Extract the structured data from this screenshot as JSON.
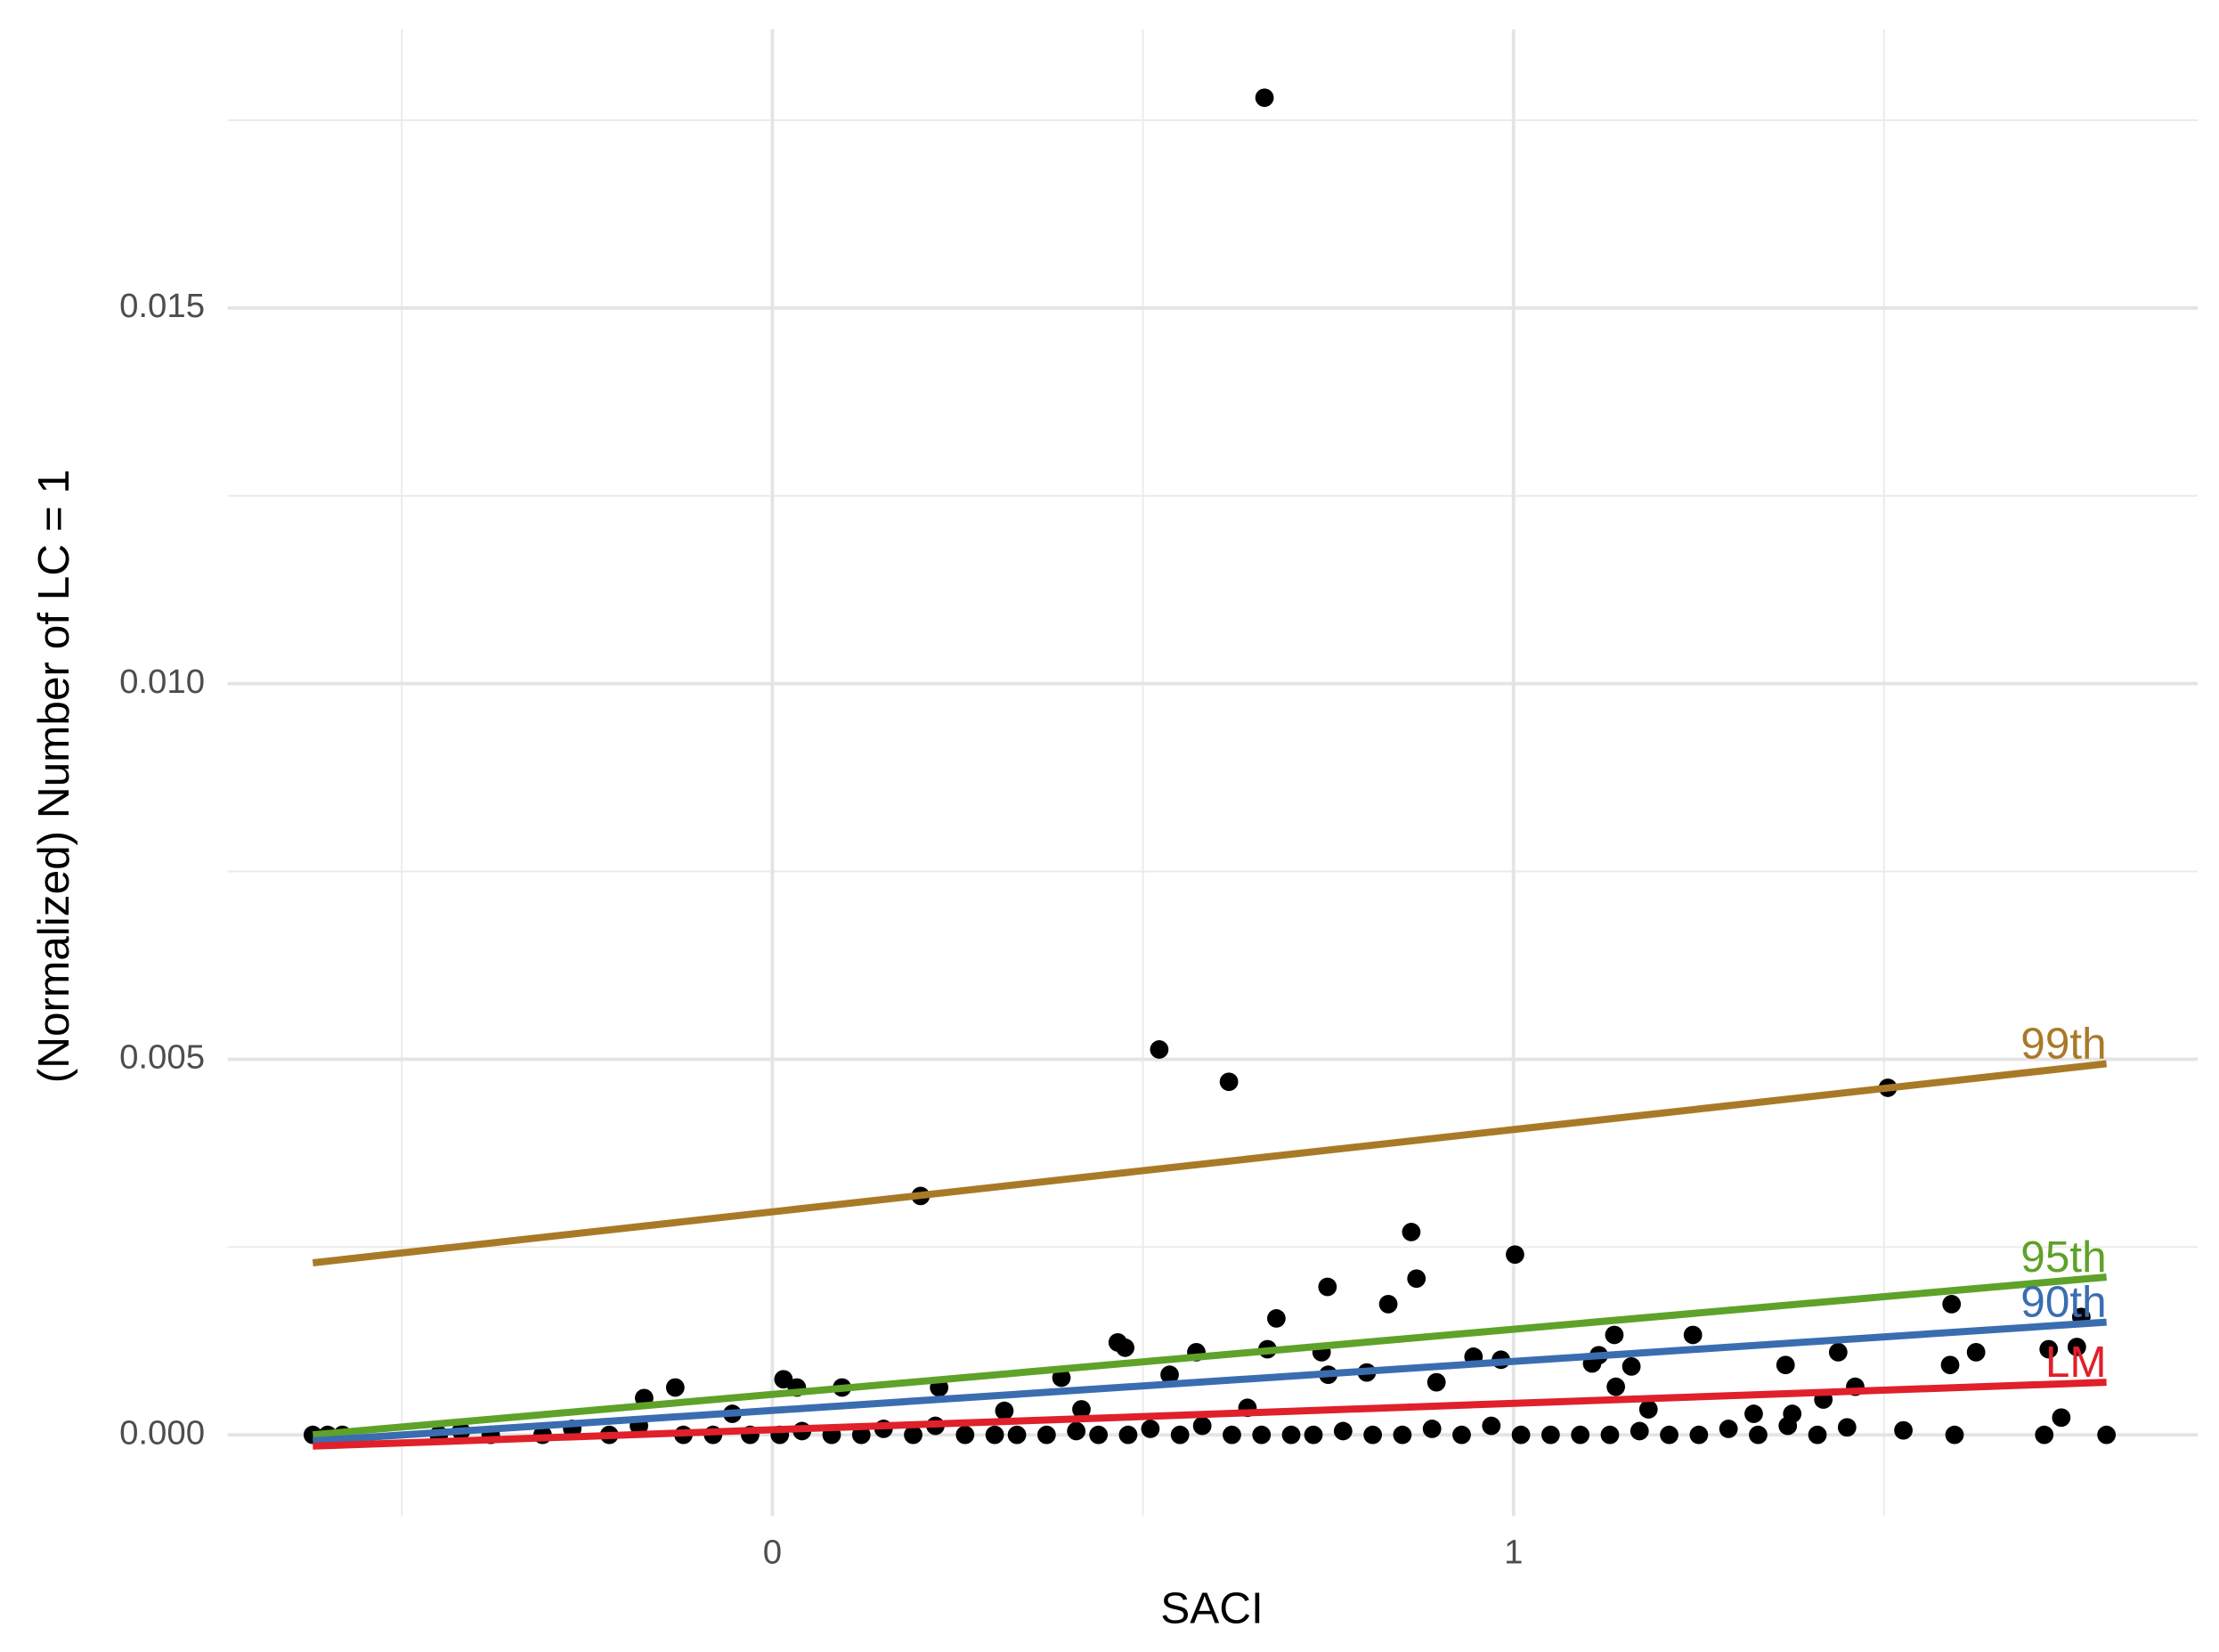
{
  "chart_data": {
    "type": "scatter",
    "xlabel": "SACI",
    "ylabel": "(Normalized) Number of LC = 1",
    "xlim": [
      -0.735,
      1.923
    ],
    "ylim": [
      -0.00108,
      0.01871
    ],
    "xticks": [
      0,
      1
    ],
    "yticks": [
      {
        "value": 0,
        "label": "0.000"
      },
      {
        "value": 0.005,
        "label": "0.005"
      },
      {
        "value": 0.01,
        "label": "0.010"
      },
      {
        "value": 0.015,
        "label": "0.015"
      }
    ],
    "xminor": [
      -0.5,
      0.5,
      1.5
    ],
    "yminor": [
      0.0025,
      0.0075,
      0.0125,
      0.0175
    ],
    "grid": true,
    "series": [
      {
        "color": "#000000",
        "x": [
          0.664,
          0.522,
          0.616,
          0.2,
          1.505,
          1.002,
          0.862,
          0.869,
          0.749,
          0.831,
          0.68,
          1.591,
          0.466,
          0.476,
          0.572,
          0.668,
          0.741,
          0.946,
          0.983,
          1.136,
          1.242,
          1.115,
          1.106,
          1.159,
          1.367,
          1.438,
          1.624,
          1.589,
          1.722,
          1.76,
          1.766,
          0.536,
          0.39,
          0.015,
          0.033,
          0.094,
          -0.131,
          -0.173,
          0.225,
          0.75,
          0.802,
          0.896,
          1.138,
          1.461,
          1.418,
          1.739,
          -0.054,
          0.313,
          0.417,
          0.641,
          1.182,
          1.324,
          1.376,
          1.716,
          1.8,
          1.595,
          1.526,
          -0.62,
          -0.6,
          -0.58,
          -0.45,
          -0.42,
          -0.38,
          -0.31,
          -0.27,
          -0.22,
          -0.18,
          -0.12,
          -0.08,
          -0.03,
          0.01,
          0.04,
          0.08,
          0.12,
          0.15,
          0.19,
          0.22,
          0.26,
          0.3,
          0.33,
          0.37,
          0.41,
          0.44,
          0.48,
          0.51,
          0.55,
          0.58,
          0.62,
          0.66,
          0.7,
          0.73,
          0.77,
          0.81,
          0.85,
          0.89,
          0.93,
          0.97,
          1.01,
          1.05,
          1.09,
          1.13,
          1.17,
          1.21,
          1.25,
          1.29,
          1.33,
          1.37,
          1.41,
          1.45
        ],
        "values": [
          0.0178,
          0.00513,
          0.0047,
          0.00318,
          0.00462,
          0.0024,
          0.0027,
          0.00208,
          0.00197,
          0.00174,
          0.00155,
          0.00174,
          0.00123,
          0.00116,
          0.0011,
          0.00114,
          0.0011,
          0.00104,
          0.001,
          0.00133,
          0.00133,
          0.00106,
          0.00095,
          0.00091,
          0.00093,
          0.0011,
          0.0011,
          0.00093,
          0.00114,
          0.00117,
          0.00157,
          0.0008,
          0.00076,
          0.00074,
          0.00063,
          0.00063,
          0.00063,
          0.00049,
          0.00063,
          0.0008,
          0.00083,
          0.0007,
          0.00064,
          0.00064,
          0.00047,
          0.00023,
          0.00028,
          0.00032,
          0.00034,
          0.00036,
          0.00034,
          0.00028,
          0.00028,
          0,
          0,
          0,
          6e-05,
          0,
          0,
          0,
          0,
          5e-05,
          0,
          0,
          8e-05,
          0,
          0.00012,
          0,
          0,
          0,
          0,
          5e-05,
          0,
          0,
          8e-05,
          0,
          0.00012,
          0,
          0,
          0,
          0,
          5e-05,
          0,
          0,
          8e-05,
          0,
          0.00012,
          0,
          0,
          0,
          0,
          5e-05,
          0,
          0,
          8e-05,
          0,
          0.00012,
          0,
          0,
          0,
          0,
          5e-05,
          0,
          0,
          8e-05,
          0,
          0.00012,
          0,
          0.0001
        ]
      }
    ],
    "lines": [
      {
        "name": "99th",
        "color": "#a87a28",
        "x": [
          -0.62,
          1.8
        ],
        "values": [
          0.00229,
          0.00494
        ]
      },
      {
        "name": "95th",
        "color": "#5ea229",
        "x": [
          -0.62,
          1.8
        ],
        "values": [
          0.0,
          0.0021
        ]
      },
      {
        "name": "90th",
        "color": "#3a6db0",
        "x": [
          -0.62,
          1.8
        ],
        "values": [
          -8e-05,
          0.0015
        ]
      },
      {
        "name": "LM",
        "color": "#e0202a",
        "x": [
          -0.62,
          1.8
        ],
        "values": [
          -0.00015,
          0.0007
        ]
      }
    ]
  }
}
